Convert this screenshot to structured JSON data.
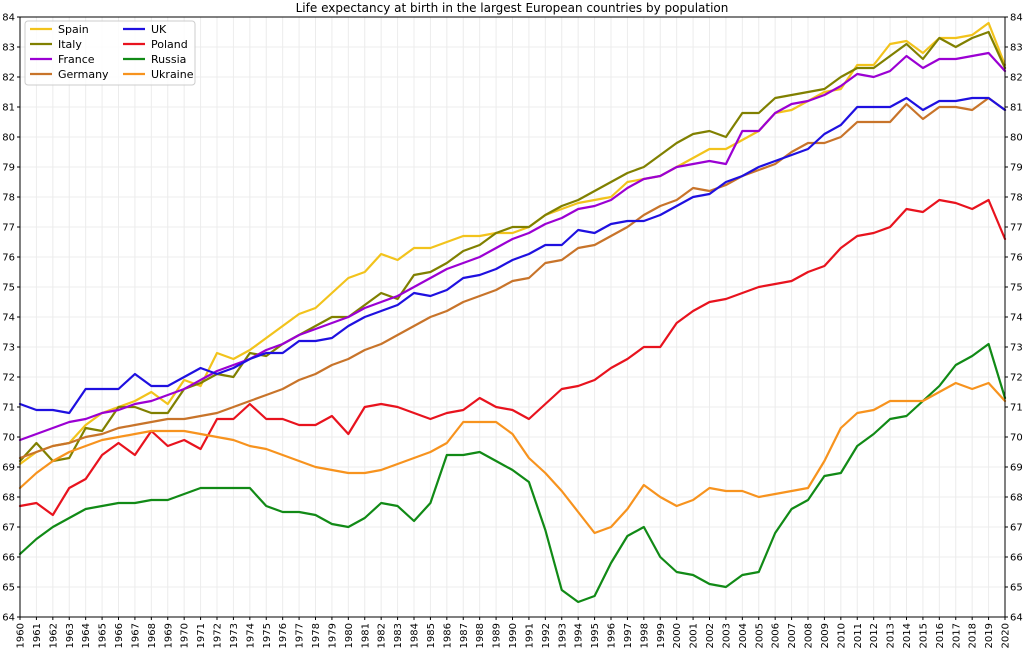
{
  "chart_data": {
    "type": "line",
    "title": "Life expectancy at birth in the largest European countries by population",
    "xlabel": "",
    "ylabel": "",
    "xlim": [
      1960,
      2020
    ],
    "ylim": [
      64,
      84
    ],
    "yticks": [
      64,
      65,
      66,
      67,
      68,
      69,
      70,
      71,
      72,
      73,
      74,
      75,
      76,
      77,
      78,
      79,
      80,
      81,
      82,
      83,
      84
    ],
    "grid": true,
    "legend": "top-left",
    "x": [
      1960,
      1961,
      1962,
      1963,
      1964,
      1965,
      1966,
      1967,
      1968,
      1969,
      1970,
      1971,
      1972,
      1973,
      1974,
      1975,
      1976,
      1977,
      1978,
      1979,
      1980,
      1981,
      1982,
      1983,
      1984,
      1985,
      1986,
      1987,
      1988,
      1989,
      1990,
      1991,
      1992,
      1993,
      1994,
      1995,
      1996,
      1997,
      1998,
      1999,
      2000,
      2001,
      2002,
      2003,
      2004,
      2005,
      2006,
      2007,
      2008,
      2009,
      2010,
      2011,
      2012,
      2013,
      2014,
      2015,
      2016,
      2017,
      2018,
      2019,
      2020
    ],
    "series": [
      {
        "name": "Spain",
        "color": "#f2c31c",
        "values": [
          69.1,
          69.5,
          69.7,
          69.8,
          70.4,
          70.8,
          71.0,
          71.2,
          71.5,
          71.1,
          71.9,
          71.7,
          72.8,
          72.6,
          72.9,
          73.3,
          73.7,
          74.1,
          74.3,
          74.8,
          75.3,
          75.5,
          76.1,
          75.9,
          76.3,
          76.3,
          76.5,
          76.7,
          76.7,
          76.8,
          76.8,
          77.0,
          77.4,
          77.6,
          77.8,
          77.9,
          78.0,
          78.5,
          78.6,
          78.7,
          79.0,
          79.3,
          79.6,
          79.6,
          79.9,
          80.2,
          80.8,
          80.9,
          81.2,
          81.5,
          81.6,
          82.4,
          82.4,
          83.1,
          83.2,
          82.8,
          83.3,
          83.3,
          83.4,
          83.8,
          82.4
        ]
      },
      {
        "name": "Italy",
        "color": "#808000",
        "values": [
          69.2,
          69.8,
          69.2,
          69.3,
          70.3,
          70.2,
          71.0,
          71.0,
          70.8,
          70.8,
          71.6,
          71.8,
          72.1,
          72.0,
          72.8,
          72.7,
          73.1,
          73.4,
          73.7,
          74.0,
          74.0,
          74.4,
          74.8,
          74.6,
          75.4,
          75.5,
          75.8,
          76.2,
          76.4,
          76.8,
          77.0,
          77.0,
          77.4,
          77.7,
          77.9,
          78.2,
          78.5,
          78.8,
          79.0,
          79.4,
          79.8,
          80.1,
          80.2,
          80.0,
          80.8,
          80.8,
          81.3,
          81.4,
          81.5,
          81.6,
          82.0,
          82.3,
          82.3,
          82.7,
          83.1,
          82.6,
          83.3,
          83.0,
          83.3,
          83.5,
          82.3
        ]
      },
      {
        "name": "France",
        "color": "#9b00d3",
        "values": [
          69.9,
          70.1,
          70.3,
          70.5,
          70.6,
          70.8,
          70.9,
          71.1,
          71.2,
          71.4,
          71.6,
          71.9,
          72.2,
          72.4,
          72.6,
          72.9,
          73.1,
          73.4,
          73.6,
          73.8,
          74.0,
          74.3,
          74.5,
          74.7,
          75.0,
          75.3,
          75.6,
          75.8,
          76.0,
          76.3,
          76.6,
          76.8,
          77.1,
          77.3,
          77.6,
          77.7,
          77.9,
          78.3,
          78.6,
          78.7,
          79.0,
          79.1,
          79.2,
          79.1,
          80.2,
          80.2,
          80.8,
          81.1,
          81.2,
          81.4,
          81.7,
          82.1,
          82.0,
          82.2,
          82.7,
          82.3,
          82.6,
          82.6,
          82.7,
          82.8,
          82.2
        ]
      },
      {
        "name": "Germany",
        "color": "#c8742a",
        "values": [
          69.3,
          69.5,
          69.7,
          69.8,
          70.0,
          70.1,
          70.3,
          70.4,
          70.5,
          70.6,
          70.6,
          70.7,
          70.8,
          71.0,
          71.2,
          71.4,
          71.6,
          71.9,
          72.1,
          72.4,
          72.6,
          72.9,
          73.1,
          73.4,
          73.7,
          74.0,
          74.2,
          74.5,
          74.7,
          74.9,
          75.2,
          75.3,
          75.8,
          75.9,
          76.3,
          76.4,
          76.7,
          77.0,
          77.4,
          77.7,
          77.9,
          78.3,
          78.2,
          78.4,
          78.7,
          78.9,
          79.1,
          79.5,
          79.8,
          79.8,
          80.0,
          80.5,
          80.5,
          80.5,
          81.1,
          80.6,
          81.0,
          81.0,
          80.9,
          81.3,
          80.9
        ]
      },
      {
        "name": "UK",
        "color": "#1f10e0",
        "values": [
          71.1,
          70.9,
          70.9,
          70.8,
          71.6,
          71.6,
          71.6,
          72.1,
          71.7,
          71.7,
          72.0,
          72.3,
          72.1,
          72.3,
          72.6,
          72.8,
          72.8,
          73.2,
          73.2,
          73.3,
          73.7,
          74.0,
          74.2,
          74.4,
          74.8,
          74.7,
          74.9,
          75.3,
          75.4,
          75.6,
          75.9,
          76.1,
          76.4,
          76.4,
          76.9,
          76.8,
          77.1,
          77.2,
          77.2,
          77.4,
          77.7,
          78.0,
          78.1,
          78.5,
          78.7,
          79.0,
          79.2,
          79.4,
          79.6,
          80.1,
          80.4,
          81.0,
          81.0,
          81.0,
          81.3,
          80.9,
          81.2,
          81.2,
          81.3,
          81.3,
          80.9
        ]
      },
      {
        "name": "Poland",
        "color": "#e8131e",
        "values": [
          67.7,
          67.8,
          67.4,
          68.3,
          68.6,
          69.4,
          69.8,
          69.4,
          70.2,
          69.7,
          69.9,
          69.6,
          70.6,
          70.6,
          71.1,
          70.6,
          70.6,
          70.4,
          70.4,
          70.7,
          70.1,
          71.0,
          71.1,
          71.0,
          70.8,
          70.6,
          70.8,
          70.9,
          71.3,
          71.0,
          70.9,
          70.6,
          71.1,
          71.6,
          71.7,
          71.9,
          72.3,
          72.6,
          73.0,
          73.0,
          73.8,
          74.2,
          74.5,
          74.6,
          74.8,
          75.0,
          75.1,
          75.2,
          75.5,
          75.7,
          76.3,
          76.7,
          76.8,
          77.0,
          77.6,
          77.5,
          77.9,
          77.8,
          77.6,
          77.9,
          76.6
        ]
      },
      {
        "name": "Russia",
        "color": "#118a16",
        "values": [
          66.1,
          66.6,
          67.0,
          67.3,
          67.6,
          67.7,
          67.8,
          67.8,
          67.9,
          67.9,
          68.1,
          68.3,
          68.3,
          68.3,
          68.3,
          67.7,
          67.5,
          67.5,
          67.4,
          67.1,
          67.0,
          67.3,
          67.8,
          67.7,
          67.2,
          67.8,
          69.4,
          69.4,
          69.5,
          69.2,
          68.9,
          68.5,
          66.9,
          64.9,
          64.5,
          64.7,
          65.8,
          66.7,
          67.0,
          66.0,
          65.5,
          65.4,
          65.1,
          65.0,
          65.4,
          65.5,
          66.8,
          67.6,
          67.9,
          68.7,
          68.8,
          69.7,
          70.1,
          70.6,
          70.7,
          71.2,
          71.7,
          72.4,
          72.7,
          73.1,
          71.3
        ]
      },
      {
        "name": "Ukraine",
        "color": "#f7931e",
        "values": [
          68.3,
          68.8,
          69.2,
          69.5,
          69.7,
          69.9,
          70.0,
          70.1,
          70.2,
          70.2,
          70.2,
          70.1,
          70.0,
          69.9,
          69.7,
          69.6,
          69.4,
          69.2,
          69.0,
          68.9,
          68.8,
          68.8,
          68.9,
          69.1,
          69.3,
          69.5,
          69.8,
          70.5,
          70.5,
          70.5,
          70.1,
          69.3,
          68.8,
          68.2,
          67.5,
          66.8,
          67.0,
          67.6,
          68.4,
          68.0,
          67.7,
          67.9,
          68.3,
          68.2,
          68.2,
          68.0,
          68.1,
          68.2,
          68.3,
          69.2,
          70.3,
          70.8,
          70.9,
          71.2,
          71.2,
          71.2,
          71.5,
          71.8,
          71.6,
          71.8,
          71.2
        ]
      }
    ]
  }
}
